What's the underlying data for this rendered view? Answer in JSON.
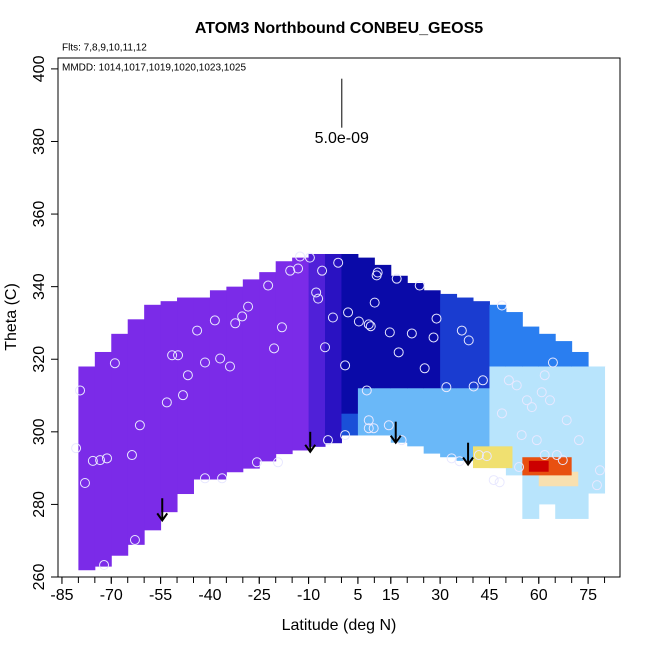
{
  "chart_data": {
    "type": "curtain",
    "title": "ATOM3 Northbound CONBEU_GEOS5",
    "flights_label": "Flts: 7,8,9,10,11,12",
    "dates_label": "MMDD: 1014,1017,1019,1020,1023,1025",
    "xlabel": "Latitude (deg N)",
    "ylabel": "Theta (C)",
    "xlim": [
      -86.2,
      84.7
    ],
    "ylim": [
      260,
      403
    ],
    "xticks": [
      -85,
      -70,
      -55,
      -40,
      -25,
      -10,
      5,
      15,
      30,
      45,
      60,
      75
    ],
    "xticks_minor": [
      -85,
      -80,
      -75,
      -70,
      -65,
      -60,
      -55,
      -50,
      -45,
      -40,
      -35,
      -30,
      -25,
      -20,
      -15,
      -10,
      -5,
      0,
      5,
      10,
      15,
      20,
      25,
      30,
      35,
      40,
      45,
      50,
      55,
      60,
      65,
      70,
      75,
      80
    ],
    "yticks": [
      260,
      280,
      300,
      320,
      340,
      360,
      380,
      400
    ],
    "field": {
      "lat": [
        -77.5,
        -72.5,
        -67.5,
        -62.5,
        -57.5,
        -52.5,
        -47.5,
        -42.5,
        -37.5,
        -32.5,
        -27.5,
        -22.5,
        -17.5,
        -12.5,
        -7.5,
        -2.5,
        2.5,
        7.5,
        12.5,
        17.5,
        22.5,
        27.5,
        32.5,
        37.5,
        42.5,
        47.5,
        52.5,
        57.5,
        62.5,
        67.5,
        72.5,
        77.5
      ],
      "bottom": [
        262,
        263,
        266,
        269,
        273,
        278,
        283,
        287,
        287,
        289,
        290,
        292,
        294,
        295,
        296,
        297,
        299,
        299,
        299,
        297,
        296,
        294,
        293,
        292,
        291,
        290,
        288,
        276,
        280,
        276,
        276,
        283
      ],
      "top": [
        318,
        322,
        327,
        331,
        335,
        336,
        337,
        337,
        339,
        340,
        342,
        344,
        347,
        348,
        349,
        349,
        349,
        348,
        346,
        343,
        341,
        339,
        338,
        337,
        336,
        335,
        333,
        329,
        327,
        325,
        322,
        318
      ],
      "split": [
        null,
        null,
        null,
        null,
        null,
        null,
        null,
        null,
        null,
        null,
        null,
        null,
        null,
        null,
        null,
        null,
        305,
        312,
        312,
        312,
        312,
        312,
        312,
        312,
        312,
        318,
        318,
        318,
        318,
        318,
        318,
        318
      ],
      "upper_color": [
        "#7b2be8",
        "#7b2be8",
        "#7b2be8",
        "#7b2be8",
        "#7b2be8",
        "#7b2be8",
        "#7b2be8",
        "#7b2be8",
        "#7b2be8",
        "#7b2be8",
        "#7b2be8",
        "#7b2be8",
        "#7b2be8",
        "#7b2be8",
        "#5020d8",
        "#2a12c2",
        "#0a0aa8",
        "#0a0aa8",
        "#0a0aa8",
        "#0a0aa8",
        "#0a0aa8",
        "#0a0aa8",
        "#1a3cd0",
        "#1a3cd0",
        "#1a3cd0",
        "#2a7ef0",
        "#2a7ef0",
        "#2a7ef0",
        "#2a7ef0",
        "#2a7ef0",
        "#2a7ef0",
        "#2a7ef0"
      ],
      "lower_color": [
        "#7b2be8",
        "#7b2be8",
        "#7b2be8",
        "#7b2be8",
        "#7b2be8",
        "#7b2be8",
        "#7b2be8",
        "#7b2be8",
        "#7b2be8",
        "#7b2be8",
        "#7b2be8",
        "#7b2be8",
        "#7b2be8",
        "#7b2be8",
        "#5020d8",
        "#2a12c2",
        "#1a50d8",
        "#6ab8f8",
        "#6ab8f8",
        "#6ab8f8",
        "#6ab8f8",
        "#6ab8f8",
        "#6ab8f8",
        "#6ab8f8",
        "#6ab8f8",
        "#b8e4fc",
        "#b8e4fc",
        "#b8e4fc",
        "#b8e4fc",
        "#b8e4fc",
        "#b8e4fc",
        "#b8e4fc"
      ]
    },
    "patches": [
      {
        "lat": [
          40,
          52
        ],
        "theta": [
          290,
          296
        ],
        "color": "#f0e070"
      },
      {
        "lat": [
          60,
          72
        ],
        "theta": [
          285,
          289
        ],
        "color": "#f8e0b0"
      },
      {
        "lat": [
          55,
          70
        ],
        "theta": [
          288,
          293
        ],
        "color": "#e85010"
      },
      {
        "lat": [
          57,
          63
        ],
        "theta": [
          289,
          292
        ],
        "color": "#cc0000"
      }
    ],
    "points": {
      "color": "#e8e8ff",
      "x": [
        -80.7,
        -79.5,
        -78,
        -75.6,
        -73.4,
        -71.3,
        -72.2,
        -62.8,
        -68.9,
        -63.7,
        -61.3,
        -53.1,
        -51.5,
        -49.7,
        -48.2,
        -46.7,
        -43.9,
        -41.5,
        -38.5,
        -36.9,
        -33.9,
        -32.3,
        -30.2,
        -28.4,
        -41.5,
        -36.3,
        -25.7,
        -22.3,
        -19.3,
        -20.5,
        -18.1,
        -15.6,
        -13.2,
        -12.6,
        -9.6,
        -5.9,
        -7.1,
        -7.7,
        -5,
        -2.6,
        -1,
        1.1,
        2,
        1.1,
        -4.1,
        5.3,
        7.7,
        8.3,
        8.9,
        10.1,
        10.7,
        11,
        14.7,
        16.8,
        17.4,
        8.3,
        8.3,
        9.8,
        14.4,
        18.3,
        21.4,
        23.8,
        25.3,
        28,
        28.9,
        31.9,
        33.5,
        35.9,
        36.6,
        38.7,
        40.2,
        41.8,
        43,
        44.2,
        46.3,
        48.1,
        48.8,
        48.8,
        50.9,
        53.3,
        54,
        54.8,
        56.4,
        57.9,
        59.4,
        60.9,
        61.8,
        63.4,
        64.3,
        65.5,
        61.8,
        67.3,
        68.5,
        72.2,
        77.7,
        78.6
      ],
      "y": [
        295.5,
        311.4,
        285.9,
        292,
        292.2,
        292.7,
        263.3,
        270.2,
        318.9,
        293.6,
        301.8,
        308.1,
        321.1,
        321.1,
        310.1,
        315.6,
        327.9,
        319.1,
        330.7,
        320.2,
        318,
        329.9,
        331.8,
        334.5,
        287.2,
        287.2,
        291.6,
        340.3,
        291.6,
        323,
        328.8,
        344.4,
        345,
        348.3,
        348,
        344.4,
        336.7,
        338.4,
        323.3,
        331.5,
        346.6,
        318.3,
        332.9,
        299.1,
        297.7,
        330.4,
        311.4,
        329.6,
        329.1,
        335.6,
        343.1,
        343.9,
        327.4,
        342.2,
        321.9,
        301,
        303.2,
        301,
        301.8,
        297.7,
        327.1,
        340.3,
        317.5,
        326,
        331.2,
        312.3,
        292.7,
        291.9,
        327.9,
        325.2,
        312.5,
        293.6,
        314.2,
        293.3,
        286.7,
        286.1,
        305.1,
        334.8,
        314.2,
        312.8,
        290.3,
        299.1,
        308.7,
        306.8,
        297.7,
        310.9,
        315.6,
        308.7,
        319.1,
        293.6,
        293.6,
        292.2,
        303.2,
        297.7,
        285.3,
        289.4
      ]
    },
    "arrows": {
      "lat": [
        -54.5,
        -9.5,
        16.5,
        38.5
      ],
      "theta_top": [
        281.7,
        300,
        302.8,
        297
      ],
      "theta_bottom": [
        275.6,
        294.5,
        297,
        291
      ]
    },
    "scale_bar": {
      "lat": 0.1,
      "theta_top": 397.3,
      "theta_bottom": 383.8,
      "label": "5.0e-09"
    }
  }
}
